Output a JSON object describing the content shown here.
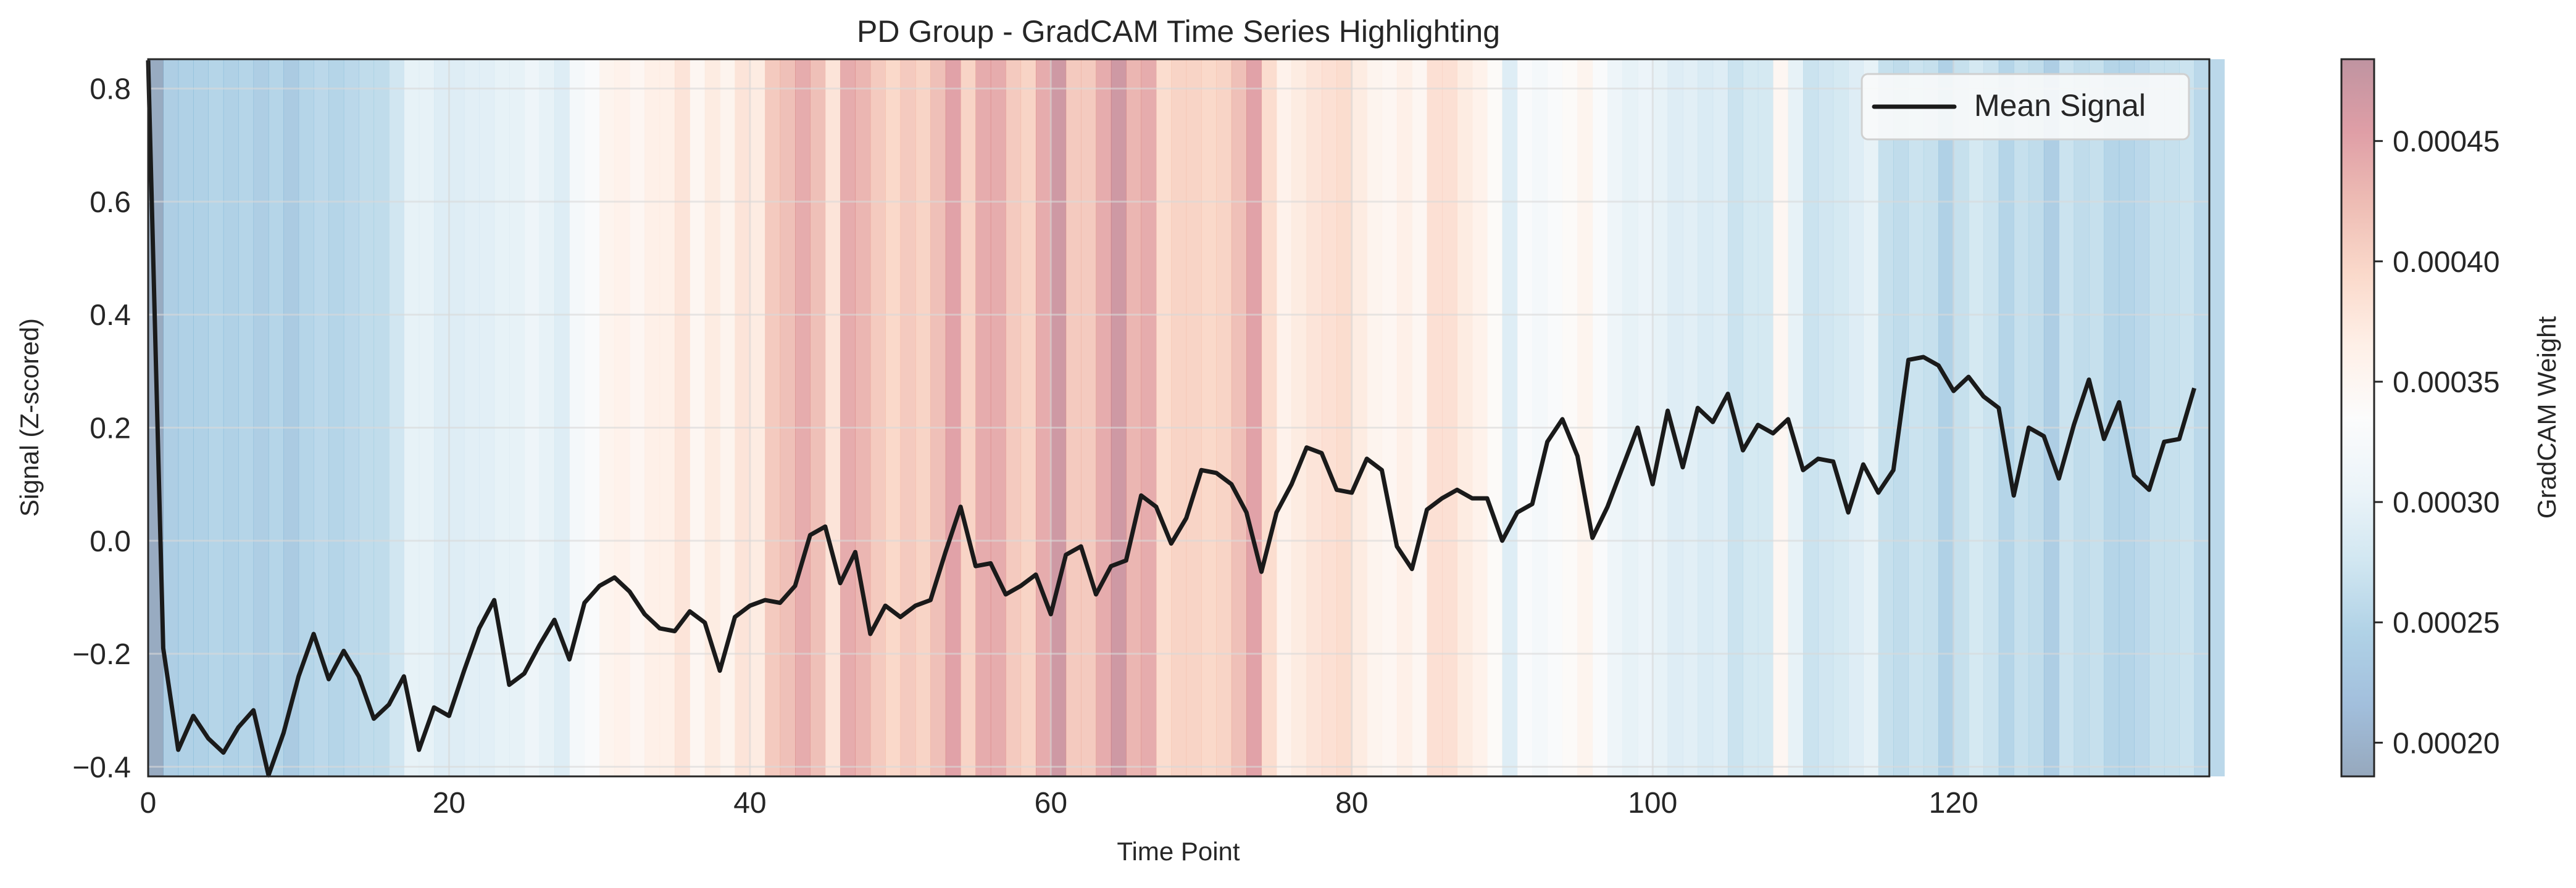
{
  "chart_data": {
    "type": "line",
    "title": "PD Group - GradCAM Time Series Highlighting",
    "xlabel": "Time Point",
    "ylabel": "Signal (Z-scored)",
    "xlim": [
      0,
      137
    ],
    "ylim": [
      -0.417,
      0.852
    ],
    "xticks": [
      0,
      20,
      40,
      60,
      80,
      100,
      120
    ],
    "yticks": [
      -0.4,
      -0.2,
      0.0,
      0.2,
      0.4,
      0.6,
      0.8
    ],
    "ytick_labels": [
      "−0.4",
      "−0.2",
      "0.0",
      "0.2",
      "0.4",
      "0.6",
      "0.8"
    ],
    "grid": true,
    "legend": {
      "position": "top-right",
      "entries": [
        "Mean Signal"
      ]
    },
    "series": [
      {
        "name": "Mean Signal",
        "color": "#1a1a1a",
        "values": [
          0.85,
          -0.19,
          -0.37,
          -0.31,
          -0.35,
          -0.375,
          -0.33,
          -0.3,
          -0.415,
          -0.34,
          -0.24,
          -0.165,
          -0.245,
          -0.195,
          -0.24,
          -0.315,
          -0.29,
          -0.24,
          -0.37,
          -0.295,
          -0.31,
          -0.23,
          -0.155,
          -0.105,
          -0.255,
          -0.235,
          -0.185,
          -0.14,
          -0.21,
          -0.11,
          -0.08,
          -0.065,
          -0.09,
          -0.13,
          -0.155,
          -0.16,
          -0.125,
          -0.145,
          -0.23,
          -0.135,
          -0.115,
          -0.105,
          -0.11,
          -0.08,
          0.01,
          0.025,
          -0.075,
          -0.02,
          -0.165,
          -0.115,
          -0.135,
          -0.115,
          -0.105,
          -0.02,
          0.06,
          -0.045,
          -0.04,
          -0.095,
          -0.08,
          -0.06,
          -0.13,
          -0.025,
          -0.01,
          -0.095,
          -0.045,
          -0.035,
          0.08,
          0.06,
          -0.005,
          0.04,
          0.125,
          0.12,
          0.1,
          0.05,
          -0.055,
          0.05,
          0.1,
          0.165,
          0.155,
          0.09,
          0.085,
          0.145,
          0.125,
          -0.01,
          -0.05,
          0.055,
          0.075,
          0.09,
          0.075,
          0.075,
          0.0,
          0.05,
          0.065,
          0.175,
          0.215,
          0.15,
          0.005,
          0.06,
          0.13,
          0.2,
          0.1,
          0.23,
          0.13,
          0.235,
          0.21,
          0.26,
          0.16,
          0.205,
          0.19,
          0.215,
          0.125,
          0.145,
          0.14,
          0.05,
          0.135,
          0.085,
          0.125,
          0.32,
          0.325,
          0.31,
          0.265,
          0.29,
          0.255,
          0.235,
          0.08,
          0.2,
          0.185,
          0.11,
          0.205,
          0.285,
          0.18,
          0.245,
          0.115,
          0.09,
          0.175,
          0.18,
          0.27
        ]
      }
    ],
    "gradcam_weights": [
      0.00019,
      0.00024,
      0.000245,
      0.000245,
      0.00025,
      0.000245,
      0.00025,
      0.00024,
      0.00025,
      0.000235,
      0.00025,
      0.000255,
      0.00025,
      0.000255,
      0.00026,
      0.00026,
      0.000275,
      0.0003,
      0.0003,
      0.00029,
      0.00029,
      0.000295,
      0.000295,
      0.0003,
      0.0003,
      0.00031,
      0.0003,
      0.00029,
      0.00032,
      0.00033,
      0.000355,
      0.00036,
      0.00035,
      0.000365,
      0.000365,
      0.00038,
      0.00035,
      0.00037,
      0.000355,
      0.00038,
      0.00037,
      0.00041,
      0.00042,
      0.00044,
      0.00042,
      0.00038,
      0.00044,
      0.00043,
      0.00041,
      0.000395,
      0.00041,
      0.0004,
      0.00042,
      0.00045,
      0.0004,
      0.00044,
      0.00044,
      0.00041,
      0.0004,
      0.00044,
      0.00047,
      0.00041,
      0.00041,
      0.00044,
      0.00047,
      0.00043,
      0.00044,
      0.00039,
      0.0004,
      0.0004,
      0.000395,
      0.0004,
      0.00042,
      0.00045,
      0.00039,
      0.00036,
      0.00037,
      0.00038,
      0.000385,
      0.00039,
      0.00037,
      0.000355,
      0.00035,
      0.000365,
      0.00035,
      0.000385,
      0.000385,
      0.00037,
      0.00036,
      0.00034,
      0.00029,
      0.00033,
      0.00032,
      0.00033,
      0.00034,
      0.000355,
      0.00033,
      0.00031,
      0.0003,
      0.000305,
      0.0003,
      0.00029,
      0.000295,
      0.000285,
      0.00029,
      0.00027,
      0.00028,
      0.00028,
      0.00035,
      0.0003,
      0.00027,
      0.000275,
      0.00028,
      0.00029,
      0.0003,
      0.000265,
      0.00026,
      0.00027,
      0.000265,
      0.000245,
      0.000265,
      0.00028,
      0.00027,
      0.00025,
      0.000265,
      0.00026,
      0.00024,
      0.00027,
      0.00026,
      0.000265,
      0.00025,
      0.00025,
      0.000255,
      0.000265,
      0.000265,
      0.00027,
      0.000255,
      0.000255
    ],
    "colorbar": {
      "label": "GradCAM Weight",
      "range": [
        0.000186,
        0.000484
      ],
      "colormap": "RdBu_r",
      "ticks": [
        0.0002,
        0.00025,
        0.0003,
        0.00035,
        0.0004,
        0.00045
      ],
      "tick_labels": [
        "0.00020",
        "0.00025",
        "0.00030",
        "0.00035",
        "0.00040",
        "0.00045"
      ]
    }
  }
}
